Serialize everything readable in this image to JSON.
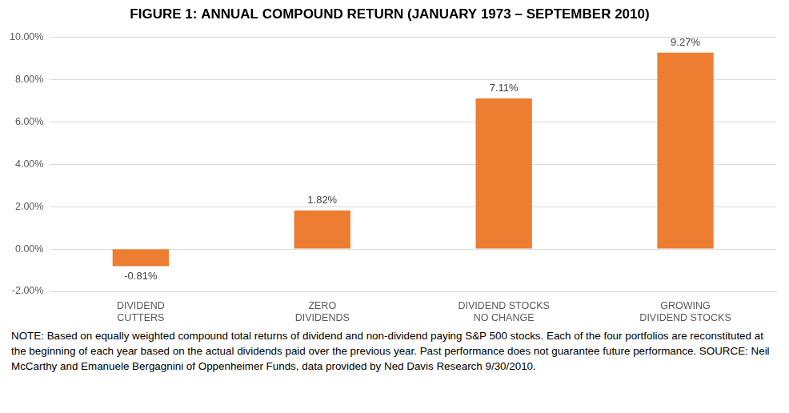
{
  "chart_data": {
    "type": "bar",
    "title": "FIGURE 1: ANNUAL COMPOUND RETURN (JANUARY 1973 – SEPTEMBER 2010)",
    "categories": [
      "DIVIDEND\nCUTTERS",
      "ZERO\nDIVIDENDS",
      "DIVIDEND STOCKS\nNO CHANGE",
      "GROWING\nDIVIDEND STOCKS"
    ],
    "values": [
      -0.81,
      1.82,
      7.11,
      9.27
    ],
    "value_labels": [
      "-0.81%",
      "1.82%",
      "7.11%",
      "9.27%"
    ],
    "color": "#ed7d31",
    "ylim": [
      -2,
      10
    ],
    "yticks": [
      {
        "value": -2,
        "label": "-2.00%"
      },
      {
        "value": 0,
        "label": "0.00%"
      },
      {
        "value": 2,
        "label": "2.00%"
      },
      {
        "value": 4,
        "label": "4.00%"
      },
      {
        "value": 6,
        "label": "6.00%"
      },
      {
        "value": 8,
        "label": "8.00%"
      },
      {
        "value": 10,
        "label": "10.00%"
      }
    ],
    "grid": true,
    "data_labels": true,
    "note": "NOTE:  Based on equally weighted compound total returns of dividend and non-dividend paying S&P 500 stocks. Each of the four portfolios are reconstituted at the beginning of each year based on the actual dividends paid over the previous year. Past performance does not guarantee future performance. SOURCE:  Neil McCarthy and Emanuele Bergagnini of Oppenheimer Funds, data provided by Ned Davis Research 9/30/2010."
  }
}
